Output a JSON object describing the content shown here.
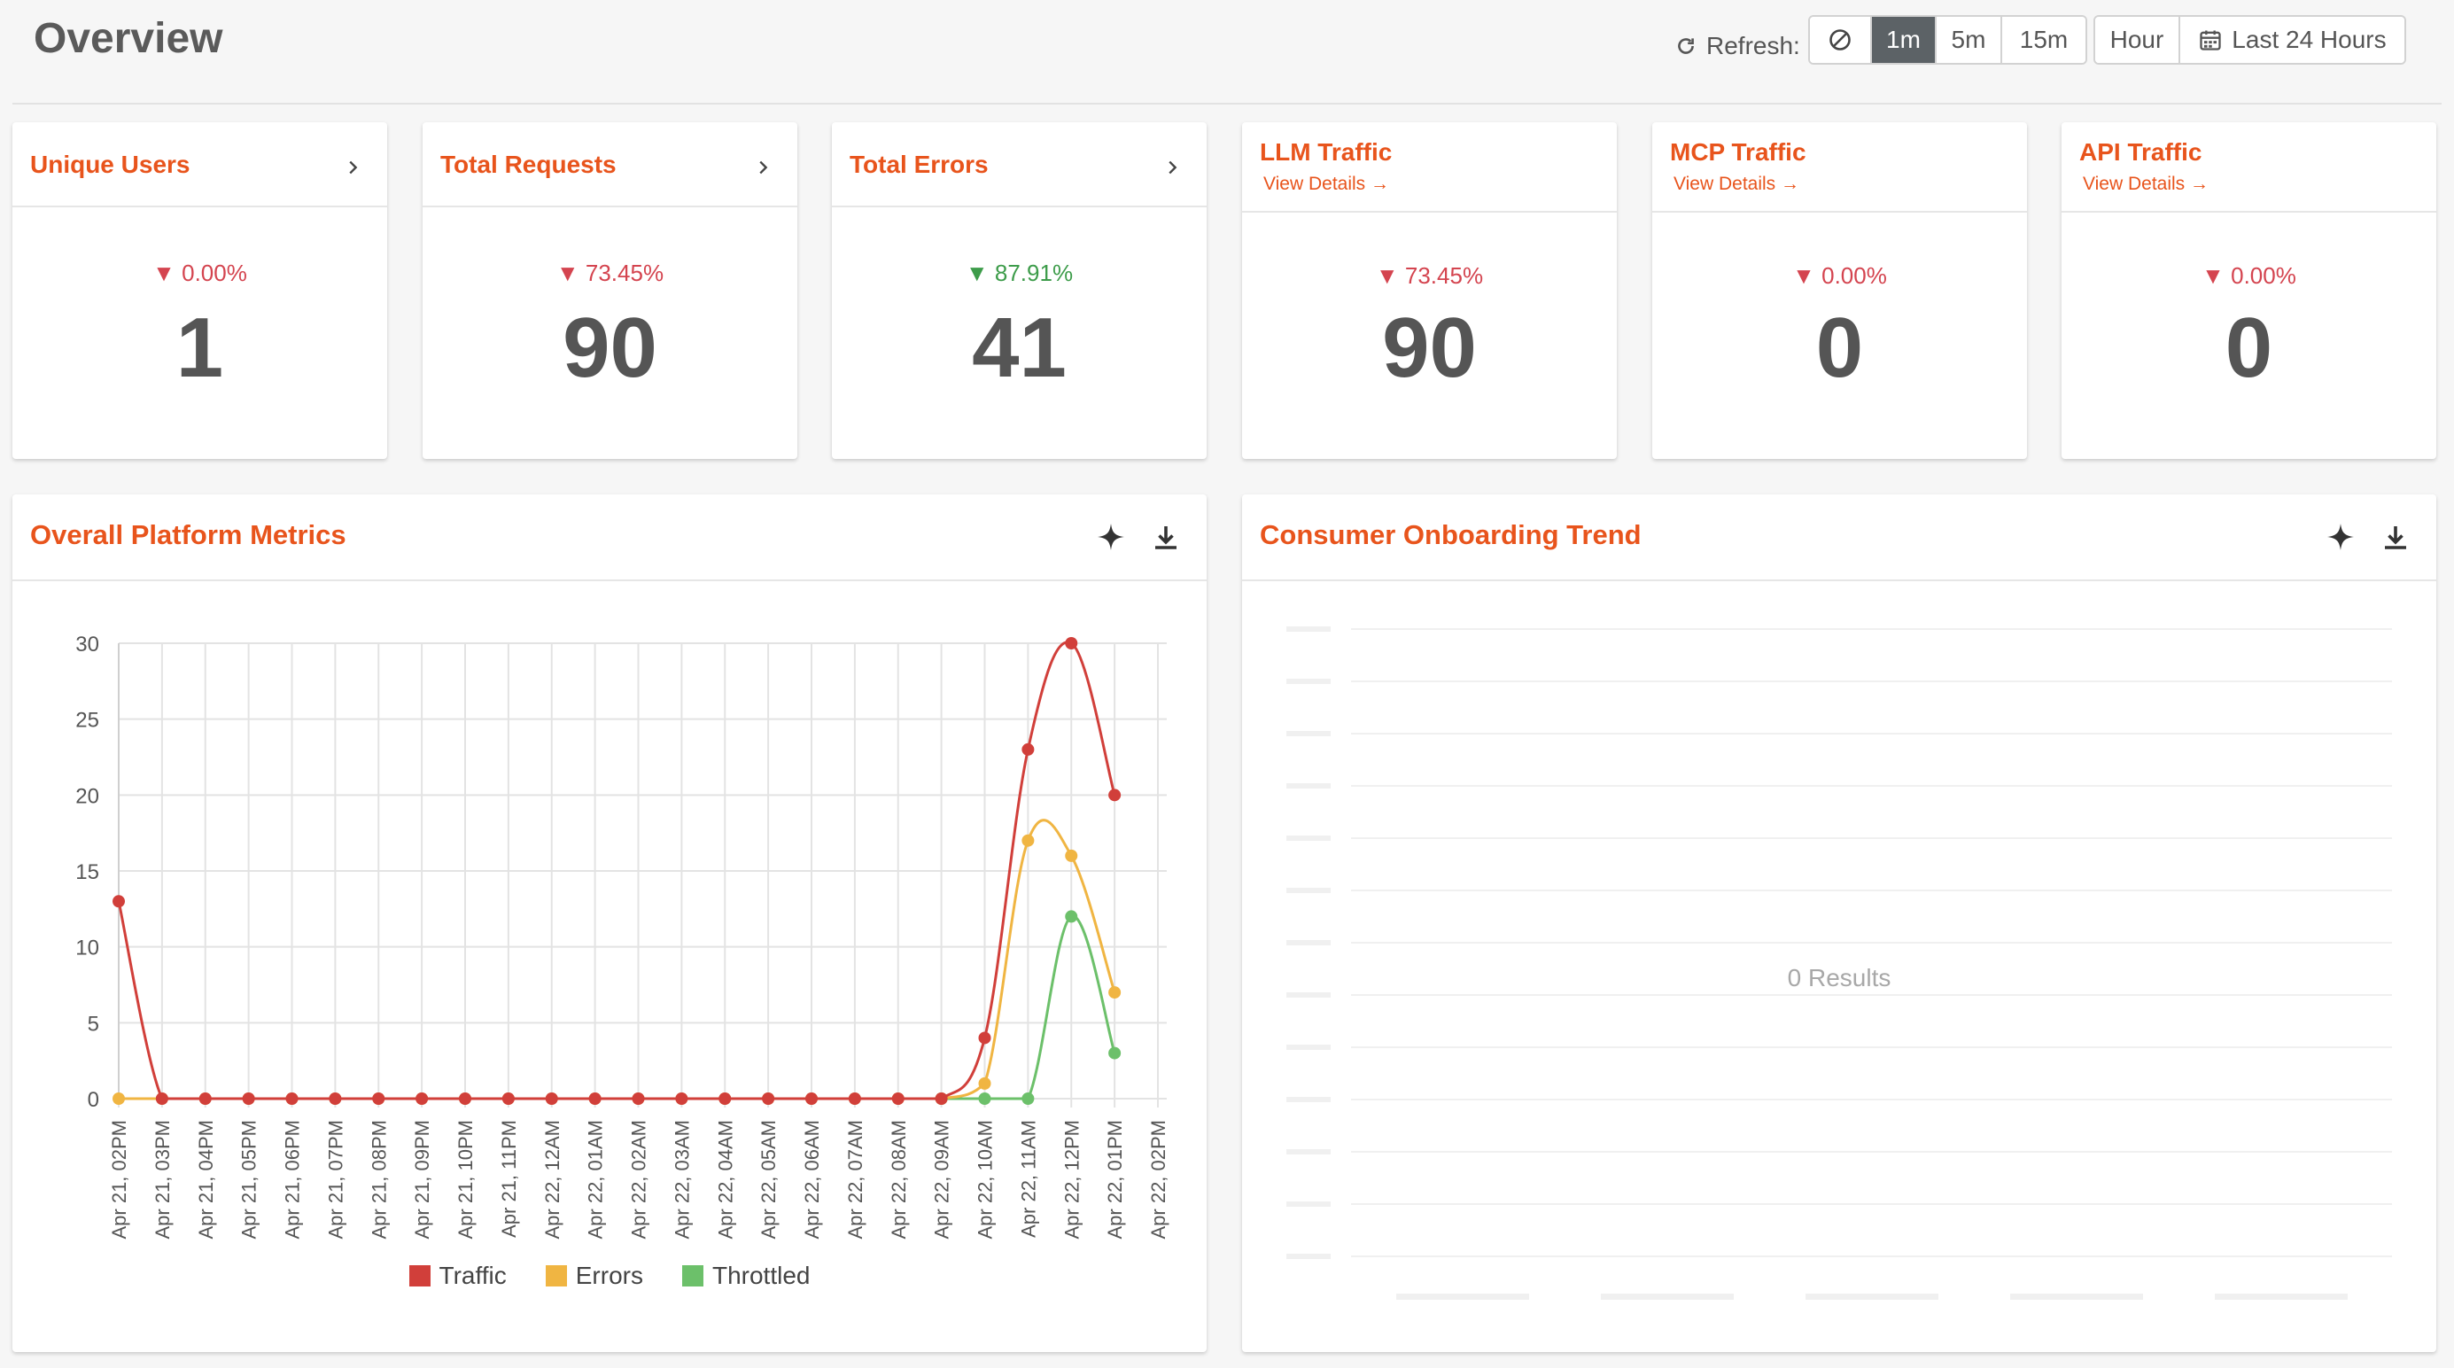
{
  "header": {
    "title": "Overview",
    "refresh_label": "Refresh:",
    "refresh_options": [
      "1m",
      "5m",
      "15m"
    ],
    "refresh_selected": "1m",
    "granularity": "Hour",
    "time_range": "Last 24 Hours"
  },
  "kpis": [
    {
      "title": "Unique Users",
      "link": "",
      "delta": "0.00%",
      "direction": "down",
      "value": "1"
    },
    {
      "title": "Total Requests",
      "link": "",
      "delta": "73.45%",
      "direction": "down",
      "value": "90"
    },
    {
      "title": "Total Errors",
      "link": "",
      "delta": "87.91%",
      "direction": "down-good",
      "value": "41"
    },
    {
      "title": "LLM Traffic",
      "link": "View Details →",
      "delta": "73.45%",
      "direction": "down",
      "value": "90"
    },
    {
      "title": "MCP Traffic",
      "link": "View Details →",
      "delta": "0.00%",
      "direction": "down",
      "value": "0"
    },
    {
      "title": "API Traffic",
      "link": "View Details →",
      "delta": "0.00%",
      "direction": "down",
      "value": "0"
    }
  ],
  "panels": {
    "platform_metrics": {
      "title": "Overall Platform Metrics"
    },
    "onboarding": {
      "title": "Consumer Onboarding Trend",
      "empty_text": "0 Results"
    }
  },
  "colors": {
    "accent": "#e8541c",
    "traffic": "#d13f3a",
    "errors": "#f0b542",
    "throttled": "#6cc06a",
    "delta_down": "#d4444f",
    "delta_up": "#3d9c4a"
  },
  "chart_data": [
    {
      "type": "line",
      "title": "Overall Platform Metrics",
      "x": [
        "Apr 21, 02PM",
        "Apr 21, 03PM",
        "Apr 21, 04PM",
        "Apr 21, 05PM",
        "Apr 21, 06PM",
        "Apr 21, 07PM",
        "Apr 21, 08PM",
        "Apr 21, 09PM",
        "Apr 21, 10PM",
        "Apr 21, 11PM",
        "Apr 22, 12AM",
        "Apr 22, 01AM",
        "Apr 22, 02AM",
        "Apr 22, 03AM",
        "Apr 22, 04AM",
        "Apr 22, 05AM",
        "Apr 22, 06AM",
        "Apr 22, 07AM",
        "Apr 22, 08AM",
        "Apr 22, 09AM",
        "Apr 22, 10AM",
        "Apr 22, 11AM",
        "Apr 22, 12PM",
        "Apr 22, 01PM",
        "Apr 22, 02PM"
      ],
      "series": [
        {
          "name": "Traffic",
          "values": [
            13,
            0,
            0,
            0,
            0,
            0,
            0,
            0,
            0,
            0,
            0,
            0,
            0,
            0,
            0,
            0,
            0,
            0,
            0,
            0,
            4,
            23,
            30,
            20,
            null
          ]
        },
        {
          "name": "Errors",
          "values": [
            0,
            0,
            0,
            0,
            0,
            0,
            0,
            0,
            0,
            0,
            0,
            0,
            0,
            0,
            0,
            0,
            0,
            0,
            0,
            0,
            1,
            17,
            16,
            7,
            null
          ]
        },
        {
          "name": "Throttled",
          "values": [
            null,
            null,
            null,
            null,
            null,
            null,
            null,
            null,
            null,
            null,
            null,
            null,
            null,
            null,
            null,
            null,
            null,
            null,
            null,
            0,
            0,
            0,
            12,
            3,
            null
          ]
        }
      ],
      "yticks": [
        0,
        5,
        10,
        15,
        20,
        25,
        30
      ],
      "ylim": [
        0,
        30
      ],
      "grid": true,
      "legend": "bottom"
    },
    {
      "type": "line",
      "title": "Consumer Onboarding Trend",
      "series": [],
      "empty_text": "0 Results"
    }
  ]
}
